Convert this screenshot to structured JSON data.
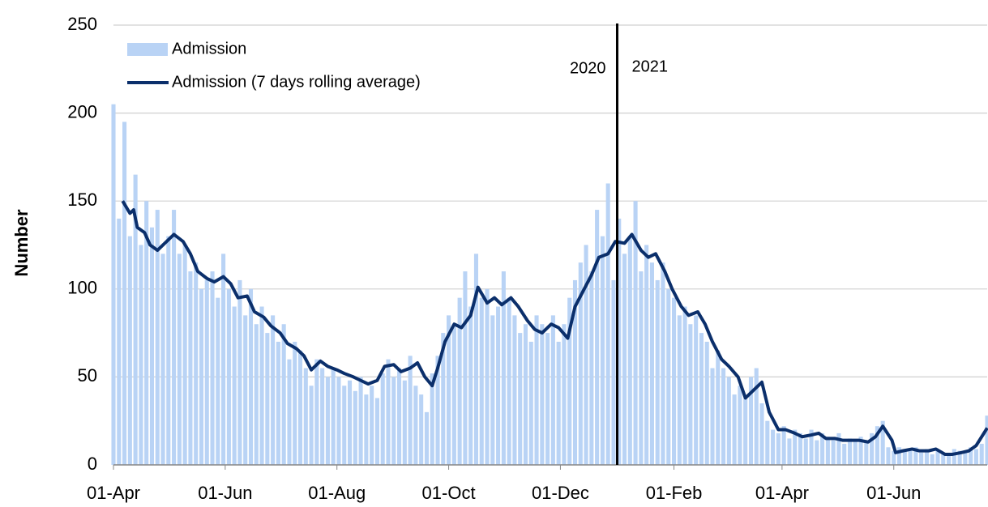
{
  "chart_data": {
    "type": "bar_line",
    "y_label": "Number",
    "xlim": [
      0,
      477
    ],
    "ylim": [
      0,
      250
    ],
    "xticks": [
      {
        "value": 0,
        "label": "01-Apr"
      },
      {
        "value": 61,
        "label": "01-Jun"
      },
      {
        "value": 122,
        "label": "01-Aug"
      },
      {
        "value": 183,
        "label": "01-Oct"
      },
      {
        "value": 244,
        "label": "01-Dec"
      },
      {
        "value": 306,
        "label": "01-Feb"
      },
      {
        "value": 365,
        "label": "01-Apr"
      },
      {
        "value": 426,
        "label": "01-Jun"
      }
    ],
    "yticks": [
      0,
      50,
      100,
      150,
      200,
      250
    ],
    "grid": true,
    "legend": "upper left",
    "year_divider": 275,
    "annotations": [
      "2020",
      "2021"
    ],
    "series": [
      {
        "name": "Admission",
        "kind": "bar",
        "color": "#b9d3f5",
        "x": [
          0,
          3,
          6,
          9,
          12,
          15,
          18,
          21,
          24,
          27,
          30,
          33,
          36,
          39,
          42,
          45,
          48,
          51,
          54,
          57,
          60,
          63,
          66,
          69,
          72,
          75,
          78,
          81,
          84,
          87,
          90,
          93,
          96,
          99,
          102,
          105,
          108,
          111,
          114,
          117,
          120,
          123,
          126,
          129,
          132,
          135,
          138,
          141,
          144,
          147,
          150,
          153,
          156,
          159,
          162,
          165,
          168,
          171,
          174,
          177,
          180,
          183,
          186,
          189,
          192,
          195,
          198,
          201,
          204,
          207,
          210,
          213,
          216,
          219,
          222,
          225,
          228,
          231,
          234,
          237,
          240,
          243,
          246,
          249,
          252,
          255,
          258,
          261,
          264,
          267,
          270,
          273,
          276,
          279,
          282,
          285,
          288,
          291,
          294,
          297,
          300,
          303,
          306,
          309,
          312,
          315,
          318,
          321,
          324,
          327,
          330,
          333,
          336,
          339,
          342,
          345,
          348,
          351,
          354,
          357,
          360,
          363,
          366,
          369,
          372,
          375,
          378,
          381,
          384,
          387,
          390,
          393,
          396,
          399,
          402,
          405,
          408,
          411,
          414,
          417,
          420,
          423,
          426,
          429,
          432,
          435,
          438,
          441,
          444,
          447,
          450,
          453,
          456,
          459,
          462,
          465,
          468,
          471,
          474,
          477
        ],
        "values": [
          205,
          140,
          195,
          130,
          165,
          125,
          150,
          135,
          145,
          120,
          130,
          145,
          120,
          125,
          110,
          115,
          100,
          105,
          110,
          95,
          120,
          100,
          90,
          105,
          85,
          100,
          80,
          90,
          75,
          85,
          70,
          80,
          60,
          70,
          65,
          55,
          45,
          60,
          55,
          50,
          55,
          50,
          45,
          48,
          42,
          50,
          40,
          45,
          38,
          52,
          60,
          50,
          55,
          48,
          62,
          45,
          40,
          30,
          52,
          62,
          75,
          85,
          80,
          95,
          110,
          90,
          120,
          95,
          100,
          85,
          90,
          110,
          95,
          85,
          75,
          80,
          70,
          85,
          80,
          75,
          85,
          70,
          80,
          95,
          105,
          115,
          125,
          110,
          145,
          130,
          160,
          105,
          140,
          120,
          130,
          150,
          110,
          125,
          115,
          105,
          115,
          100,
          95,
          85,
          90,
          80,
          85,
          75,
          70,
          55,
          65,
          55,
          50,
          40,
          45,
          38,
          50,
          55,
          35,
          25,
          20,
          18,
          22,
          15,
          20,
          18,
          15,
          20,
          14,
          18,
          16,
          14,
          18,
          12,
          15,
          14,
          16,
          13,
          18,
          22,
          25,
          10,
          8,
          10,
          9,
          8,
          10,
          7,
          9,
          6,
          8,
          7,
          6,
          9,
          8,
          7,
          10,
          9,
          12,
          28
        ]
      },
      {
        "name": "Admission (7 days rolling average)",
        "kind": "line",
        "color": "#0b2f6b",
        "x": [
          5,
          9,
          11,
          13,
          17,
          20,
          24,
          29,
          33,
          38,
          42,
          46,
          51,
          55,
          60,
          64,
          68,
          73,
          77,
          82,
          86,
          91,
          95,
          100,
          104,
          108,
          113,
          117,
          122,
          126,
          131,
          135,
          139,
          144,
          148,
          153,
          157,
          162,
          166,
          170,
          174,
          177,
          181,
          186,
          190,
          195,
          199,
          204,
          208,
          212,
          217,
          221,
          226,
          230,
          234,
          239,
          243,
          248,
          252,
          257,
          261,
          265,
          270,
          274,
          279,
          283,
          288,
          292,
          296,
          301,
          305,
          310,
          314,
          319,
          323,
          327,
          332,
          336,
          341,
          345,
          350,
          354,
          358,
          363,
          367,
          372,
          376,
          381,
          385,
          389,
          394,
          398,
          403,
          407,
          412,
          416,
          420,
          425,
          427,
          431,
          436,
          440,
          445,
          449,
          454,
          458,
          463,
          467,
          471,
          477
        ],
        "values": [
          150,
          143,
          145,
          135,
          132,
          125,
          122,
          127,
          131,
          127,
          120,
          110,
          106,
          104,
          107,
          103,
          95,
          96,
          87,
          84,
          79,
          75,
          69,
          66,
          62,
          54,
          59,
          56,
          54,
          52,
          50,
          48,
          46,
          48,
          56,
          57,
          53,
          55,
          58,
          50,
          45,
          55,
          70,
          80,
          78,
          85,
          101,
          92,
          95,
          91,
          95,
          90,
          82,
          77,
          75,
          80,
          78,
          72,
          90,
          100,
          108,
          118,
          120,
          127,
          126,
          131,
          122,
          118,
          120,
          110,
          100,
          90,
          85,
          87,
          80,
          70,
          60,
          56,
          50,
          38,
          43,
          47,
          30,
          20,
          20,
          18,
          16,
          17,
          18,
          15,
          15,
          14,
          14,
          14,
          13,
          16,
          22,
          14,
          7,
          8,
          9,
          8,
          8,
          9,
          6,
          6,
          7,
          8,
          11,
          21
        ]
      }
    ]
  }
}
